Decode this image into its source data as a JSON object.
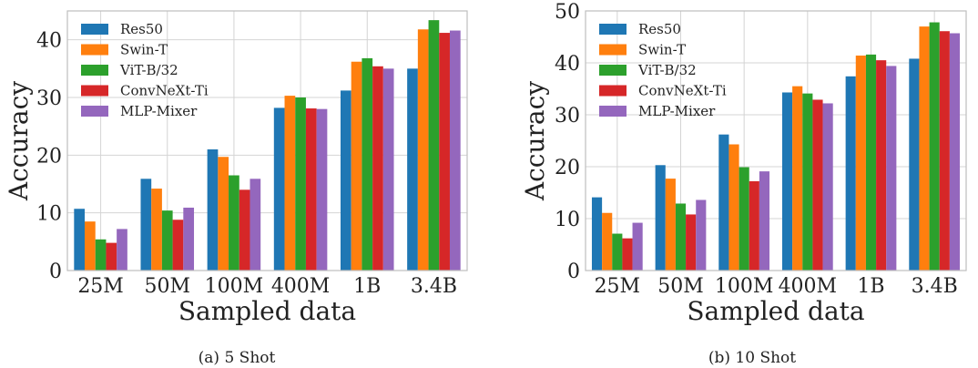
{
  "chart_data": [
    {
      "type": "bar",
      "caption": "(a) 5 Shot",
      "xlabel": "Sampled data",
      "ylabel": "Accuracy",
      "categories": [
        "25M",
        "50M",
        "100M",
        "400M",
        "1B",
        "3.4B"
      ],
      "ylim": [
        0,
        45
      ],
      "yticks": [
        0,
        10,
        20,
        30,
        40
      ],
      "grid": true,
      "legend_position": "top-left",
      "series": [
        {
          "name": "Res50",
          "color": "#1f77b4",
          "values": [
            10.7,
            15.9,
            21.0,
            28.2,
            31.2,
            35.0
          ]
        },
        {
          "name": "Swin-T",
          "color": "#ff7f0e",
          "values": [
            8.5,
            14.2,
            19.7,
            30.3,
            36.2,
            41.8
          ]
        },
        {
          "name": "ViT-B/32",
          "color": "#2ca02c",
          "values": [
            5.4,
            10.4,
            16.5,
            30.0,
            36.8,
            43.4
          ]
        },
        {
          "name": "ConvNeXt-Ti",
          "color": "#d62728",
          "values": [
            4.8,
            8.8,
            14.0,
            28.1,
            35.4,
            41.2
          ]
        },
        {
          "name": "MLP-Mixer",
          "color": "#9467bd",
          "values": [
            7.2,
            10.9,
            15.9,
            28.0,
            35.0,
            41.6
          ]
        }
      ]
    },
    {
      "type": "bar",
      "caption": "(b) 10 Shot",
      "xlabel": "Sampled data",
      "ylabel": "Accuracy",
      "categories": [
        "25M",
        "50M",
        "100M",
        "400M",
        "1B",
        "3.4B"
      ],
      "ylim": [
        0,
        50
      ],
      "yticks": [
        0,
        10,
        20,
        30,
        40,
        50
      ],
      "grid": true,
      "legend_position": "top-left",
      "series": [
        {
          "name": "Res50",
          "color": "#1f77b4",
          "values": [
            14.1,
            20.3,
            26.2,
            34.3,
            37.4,
            40.8
          ]
        },
        {
          "name": "Swin-T",
          "color": "#ff7f0e",
          "values": [
            11.1,
            17.7,
            24.3,
            35.5,
            41.4,
            47.0
          ]
        },
        {
          "name": "ViT-B/32",
          "color": "#2ca02c",
          "values": [
            7.1,
            12.9,
            19.9,
            34.1,
            41.6,
            47.8
          ]
        },
        {
          "name": "ConvNeXt-Ti",
          "color": "#d62728",
          "values": [
            6.2,
            10.8,
            17.2,
            32.9,
            40.5,
            46.1
          ]
        },
        {
          "name": "MLP-Mixer",
          "color": "#9467bd",
          "values": [
            9.2,
            13.6,
            19.1,
            32.2,
            39.4,
            45.7
          ]
        }
      ]
    }
  ]
}
